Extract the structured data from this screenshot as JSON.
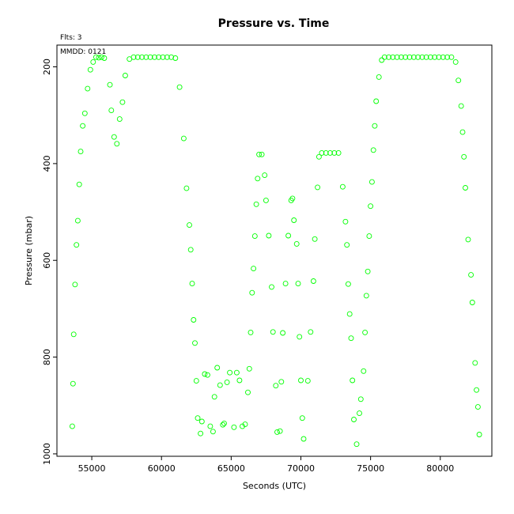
{
  "header": {
    "flts_label": "Flts: 3",
    "mmdd_label": "MMDD: 0121"
  },
  "chart_data": {
    "type": "scatter",
    "title": "Pressure  vs. Time",
    "xlabel": "Seconds (UTC)",
    "ylabel": "Pressure (mbar)",
    "xlim": [
      52500,
      83700
    ],
    "ylim": [
      1005,
      155
    ],
    "y_axis_inverted": true,
    "x_ticks": [
      55000,
      60000,
      65000,
      70000,
      75000,
      80000
    ],
    "y_ticks": [
      200,
      400,
      600,
      800,
      1000
    ],
    "grid": false,
    "marker": "open-circle",
    "marker_color": "#00ff00",
    "series": [
      {
        "points": [
          [
            53600,
            943
          ],
          [
            53650,
            855
          ],
          [
            53700,
            753
          ],
          [
            53800,
            650
          ],
          [
            53900,
            568
          ],
          [
            54000,
            518
          ],
          [
            54100,
            443
          ],
          [
            54200,
            375
          ],
          [
            54350,
            322
          ],
          [
            54500,
            296
          ],
          [
            54700,
            245
          ],
          [
            54900,
            206
          ],
          [
            55100,
            190
          ],
          [
            55300,
            180
          ],
          [
            55500,
            181
          ],
          [
            55700,
            180
          ],
          [
            55900,
            182
          ],
          [
            56300,
            237
          ],
          [
            56400,
            290
          ],
          [
            56600,
            345
          ],
          [
            56800,
            359
          ],
          [
            57000,
            308
          ],
          [
            57200,
            273
          ],
          [
            57400,
            218
          ],
          [
            57700,
            184
          ],
          [
            58000,
            180
          ],
          [
            58300,
            180
          ],
          [
            58600,
            180
          ],
          [
            58900,
            180
          ],
          [
            59200,
            180
          ],
          [
            59500,
            180
          ],
          [
            59800,
            180
          ],
          [
            60100,
            180
          ],
          [
            60400,
            180
          ],
          [
            60700,
            180
          ],
          [
            61000,
            182
          ],
          [
            61300,
            242
          ],
          [
            61600,
            348
          ],
          [
            61800,
            451
          ],
          [
            62000,
            527
          ],
          [
            62100,
            578
          ],
          [
            62200,
            648
          ],
          [
            62300,
            723
          ],
          [
            62400,
            771
          ],
          [
            62500,
            849
          ],
          [
            62600,
            926
          ],
          [
            62800,
            958
          ],
          [
            62900,
            933
          ],
          [
            63100,
            835
          ],
          [
            63300,
            837
          ],
          [
            63500,
            943
          ],
          [
            63700,
            954
          ],
          [
            63800,
            882
          ],
          [
            64000,
            822
          ],
          [
            64200,
            858
          ],
          [
            64400,
            940
          ],
          [
            64500,
            937
          ],
          [
            64700,
            852
          ],
          [
            64900,
            832
          ],
          [
            65200,
            945
          ],
          [
            65400,
            832
          ],
          [
            65600,
            848
          ],
          [
            65800,
            943
          ],
          [
            66000,
            939
          ],
          [
            66200,
            873
          ],
          [
            66300,
            824
          ],
          [
            66400,
            749
          ],
          [
            66500,
            667
          ],
          [
            66600,
            617
          ],
          [
            66700,
            550
          ],
          [
            66800,
            484
          ],
          [
            66900,
            431
          ],
          [
            67000,
            381
          ],
          [
            67200,
            381
          ],
          [
            67400,
            424
          ],
          [
            67500,
            476
          ],
          [
            67700,
            549
          ],
          [
            67900,
            655
          ],
          [
            68000,
            748
          ],
          [
            68200,
            859
          ],
          [
            68300,
            955
          ],
          [
            68500,
            953
          ],
          [
            68600,
            851
          ],
          [
            68700,
            750
          ],
          [
            68900,
            648
          ],
          [
            69100,
            549
          ],
          [
            69300,
            476
          ],
          [
            69400,
            472
          ],
          [
            69500,
            517
          ],
          [
            69700,
            566
          ],
          [
            69800,
            648
          ],
          [
            69900,
            758
          ],
          [
            70000,
            848
          ],
          [
            70100,
            926
          ],
          [
            70200,
            969
          ],
          [
            70500,
            849
          ],
          [
            70700,
            748
          ],
          [
            70900,
            643
          ],
          [
            71000,
            556
          ],
          [
            71200,
            449
          ],
          [
            71300,
            386
          ],
          [
            71500,
            378
          ],
          [
            71800,
            378
          ],
          [
            72100,
            378
          ],
          [
            72400,
            378
          ],
          [
            72700,
            378
          ],
          [
            73000,
            448
          ],
          [
            73200,
            520
          ],
          [
            73300,
            568
          ],
          [
            73400,
            649
          ],
          [
            73500,
            711
          ],
          [
            73600,
            761
          ],
          [
            73700,
            848
          ],
          [
            73800,
            929
          ],
          [
            74000,
            980
          ],
          [
            74200,
            916
          ],
          [
            74300,
            887
          ],
          [
            74500,
            829
          ],
          [
            74600,
            749
          ],
          [
            74700,
            673
          ],
          [
            74800,
            623
          ],
          [
            74900,
            550
          ],
          [
            75000,
            488
          ],
          [
            75100,
            438
          ],
          [
            75200,
            372
          ],
          [
            75300,
            322
          ],
          [
            75400,
            271
          ],
          [
            75600,
            221
          ],
          [
            75800,
            186
          ],
          [
            76000,
            180
          ],
          [
            76300,
            180
          ],
          [
            76600,
            180
          ],
          [
            76900,
            180
          ],
          [
            77200,
            180
          ],
          [
            77500,
            180
          ],
          [
            77800,
            180
          ],
          [
            78100,
            180
          ],
          [
            78400,
            180
          ],
          [
            78700,
            180
          ],
          [
            79000,
            180
          ],
          [
            79300,
            180
          ],
          [
            79600,
            180
          ],
          [
            79900,
            180
          ],
          [
            80200,
            180
          ],
          [
            80500,
            180
          ],
          [
            80800,
            180
          ],
          [
            81100,
            190
          ],
          [
            81300,
            228
          ],
          [
            81500,
            281
          ],
          [
            81600,
            335
          ],
          [
            81700,
            386
          ],
          [
            81800,
            450
          ],
          [
            82000,
            557
          ],
          [
            82200,
            630
          ],
          [
            82300,
            687
          ],
          [
            82500,
            812
          ],
          [
            82600,
            868
          ],
          [
            82700,
            903
          ],
          [
            82800,
            960
          ]
        ]
      }
    ]
  }
}
